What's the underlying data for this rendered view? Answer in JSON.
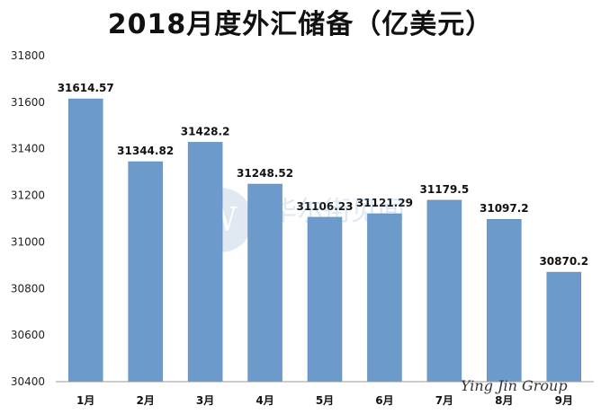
{
  "title": "2018月度外汇储备（亿美元）",
  "watermark": "Ying Jin Group",
  "center_watermark": "华尔街见闻",
  "colors": {
    "bar": "#6c9acb",
    "bar_stroke": "#5b86b6",
    "axis": "#999999"
  },
  "chart_data": {
    "type": "bar",
    "title": "2018月度外汇储备（亿美元）",
    "xlabel": "",
    "ylabel": "",
    "categories": [
      "1月",
      "2月",
      "3月",
      "4月",
      "5月",
      "6月",
      "7月",
      "8月",
      "9月"
    ],
    "values": [
      31614.57,
      31344.82,
      31428.2,
      31248.52,
      31106.23,
      31121.29,
      31179.5,
      31097.2,
      30870.2
    ],
    "value_labels": [
      "31614.57",
      "31344.82",
      "31428.2",
      "31248.52",
      "31106.23",
      "31121.29",
      "31179.5",
      "31097.2",
      "30870.2"
    ],
    "ylim": [
      30400,
      31800
    ],
    "yticks": [
      "30400",
      "30600",
      "30800",
      "31000",
      "31200",
      "31400",
      "31600",
      "31800"
    ],
    "grid": false,
    "legend": "none"
  }
}
